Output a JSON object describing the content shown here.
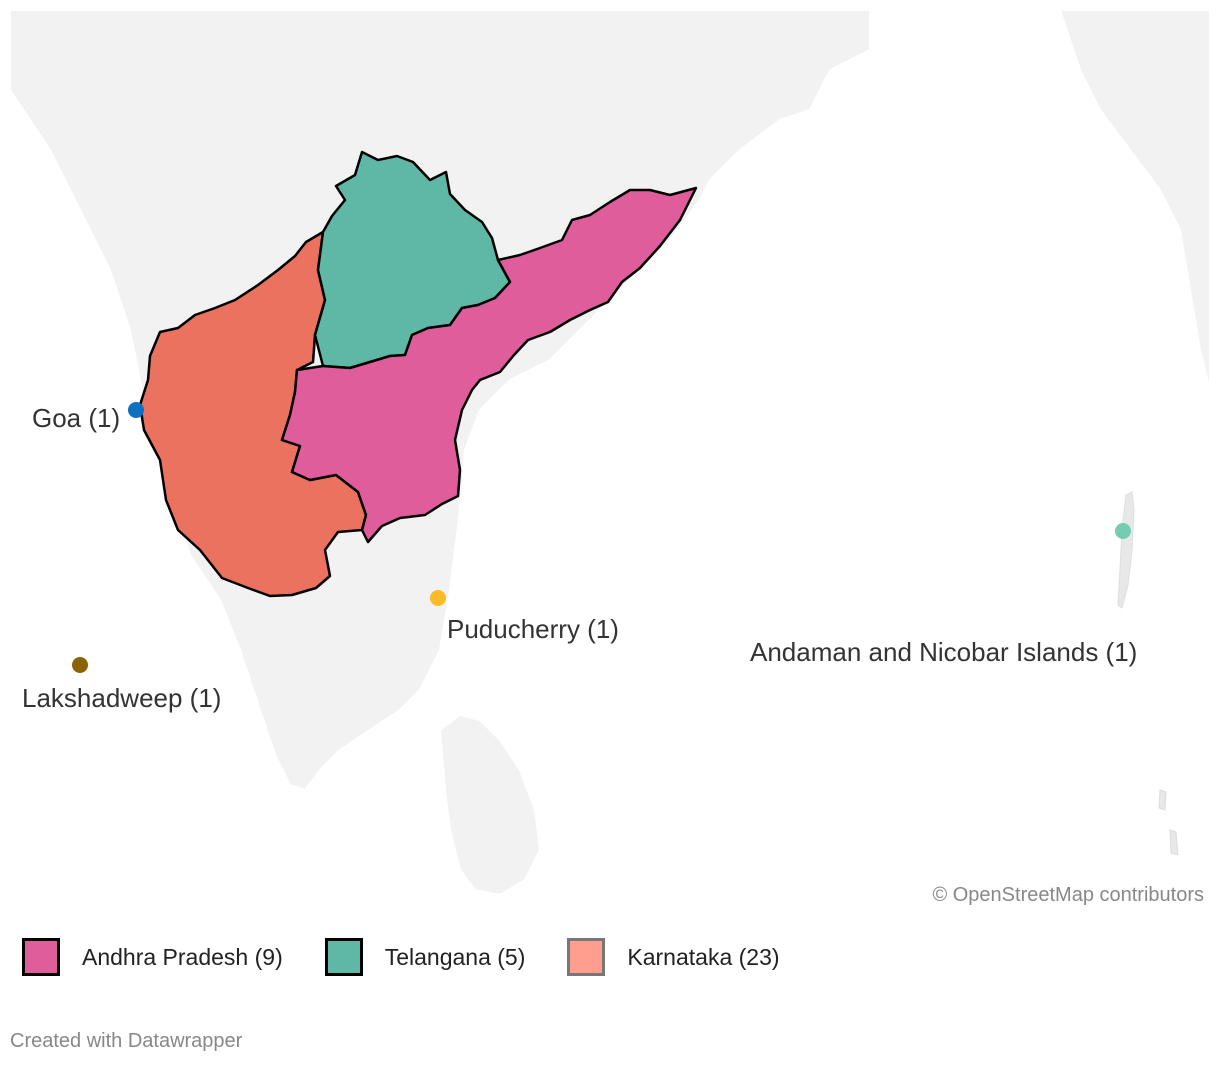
{
  "map": {
    "regions": [
      {
        "name": "Andhra Pradesh",
        "count": 9,
        "color": "#e05d9b"
      },
      {
        "name": "Telangana",
        "count": 5,
        "color": "#5fb8a5"
      },
      {
        "name": "Karnataka",
        "count": 23,
        "color": "#ea725f"
      }
    ],
    "points": [
      {
        "label": "Goa (1)",
        "color": "#0d71c2"
      },
      {
        "label": "Lakshadweep (1)",
        "color": "#8c6100"
      },
      {
        "label": "Puducherry (1)",
        "color": "#fbbb27"
      },
      {
        "label": "Andaman and Nicobar Islands (1)",
        "color": "#74cdb1"
      }
    ],
    "land_color": "#f2f2f2",
    "water_color": "#ffffff"
  },
  "attribution": "© OpenStreetMap contributors",
  "legend": [
    {
      "label": "Andhra Pradesh (9)",
      "fill": "#e05d9b",
      "border": "#000000"
    },
    {
      "label": "Telangana (5)",
      "fill": "#5fb8a5",
      "border": "#000000"
    },
    {
      "label": "Karnataka (23)",
      "fill": "#ff9d8f",
      "border": "#777777"
    }
  ],
  "footer": "Created with Datawrapper"
}
